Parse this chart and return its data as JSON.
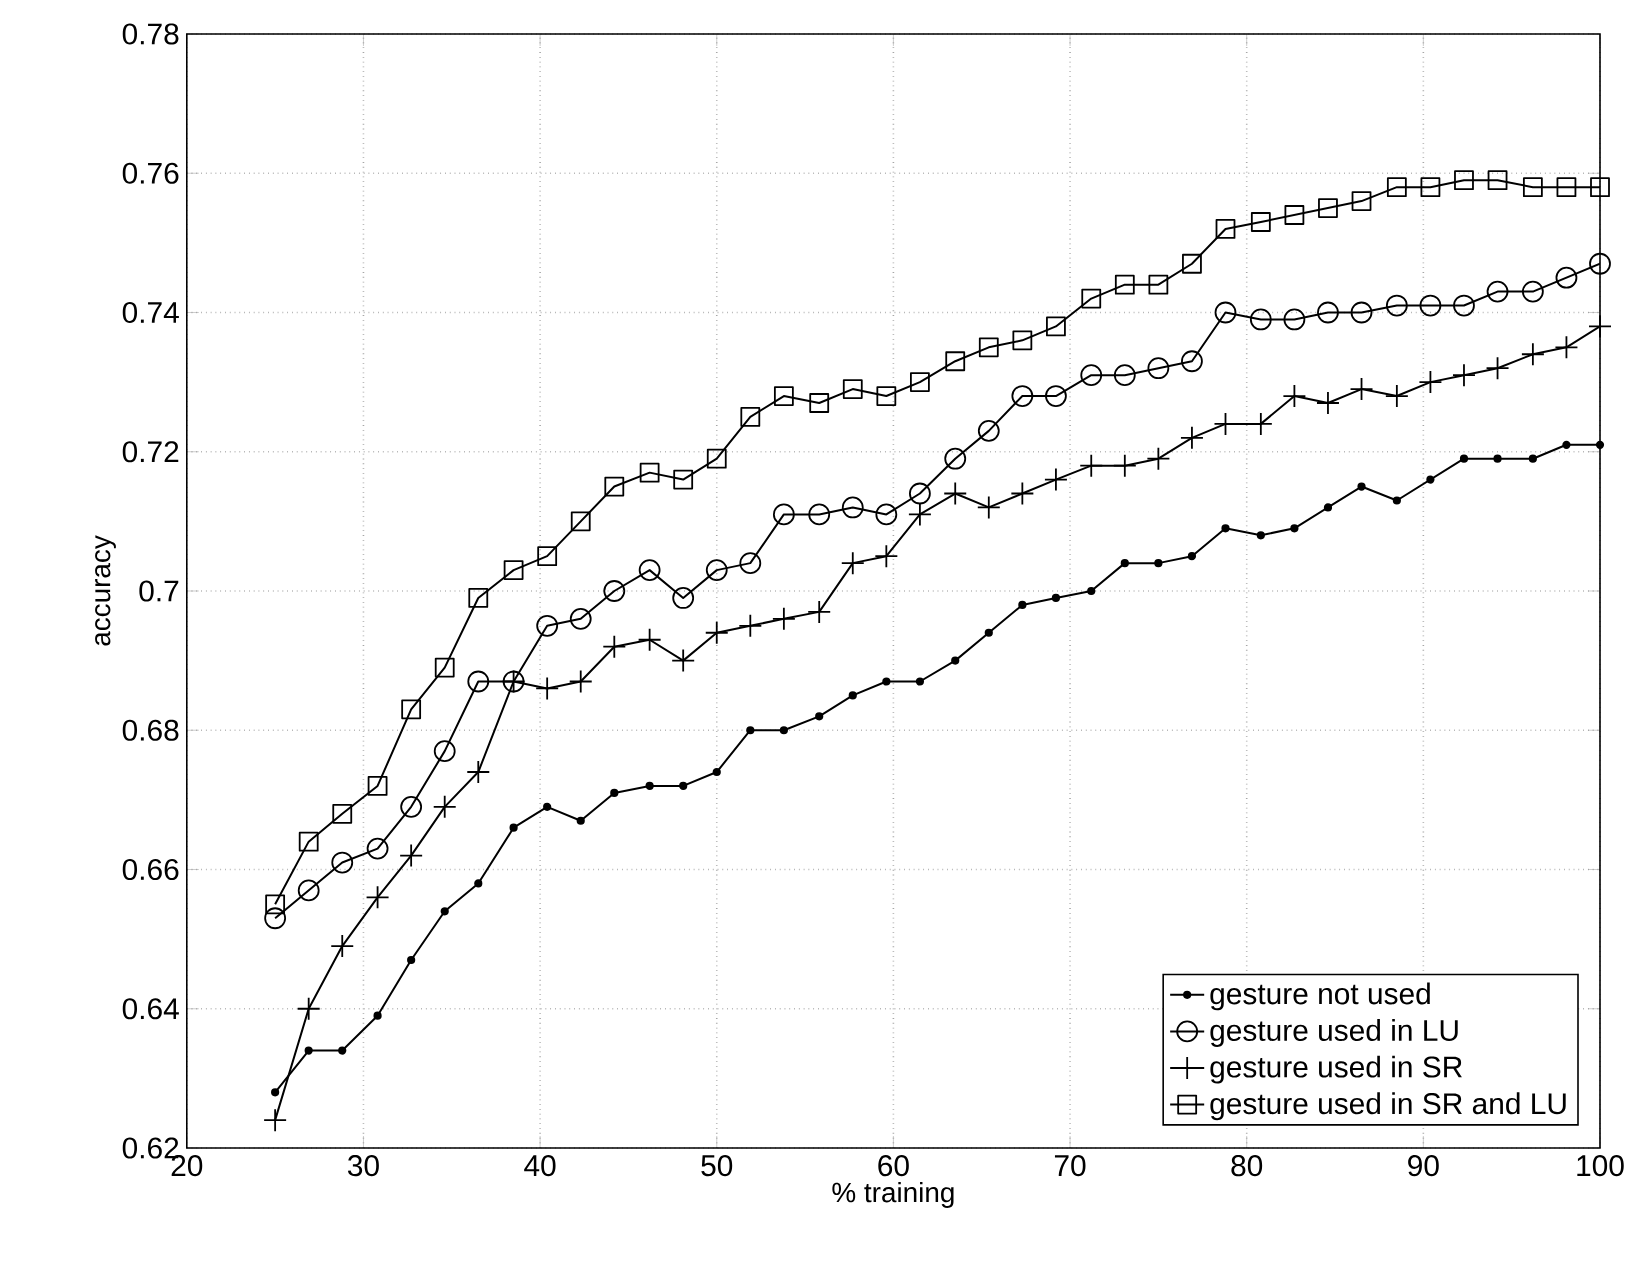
{
  "chart_data": {
    "type": "line",
    "xlabel": "% training",
    "ylabel": "accuracy",
    "x": [
      25,
      26.9,
      28.8,
      30.8,
      32.7,
      34.6,
      36.5,
      38.5,
      40.4,
      42.3,
      44.2,
      46.2,
      48.1,
      50,
      51.9,
      53.8,
      55.8,
      57.7,
      59.6,
      61.5,
      63.5,
      65.4,
      67.3,
      69.2,
      71.2,
      73.1,
      75,
      76.9,
      78.8,
      80.8,
      82.7,
      84.6,
      86.5,
      88.5,
      90.4,
      92.3,
      94.2,
      96.2,
      98.1,
      100
    ],
    "series": [
      {
        "name": "gesture not used",
        "color": "#000000",
        "marker": "point",
        "values": [
          0.628,
          0.634,
          0.634,
          0.639,
          0.647,
          0.654,
          0.658,
          0.666,
          0.669,
          0.667,
          0.671,
          0.672,
          0.672,
          0.674,
          0.68,
          0.68,
          0.682,
          0.685,
          0.687,
          0.687,
          0.69,
          0.694,
          0.698,
          0.699,
          0.7,
          0.704,
          0.704,
          0.705,
          0.709,
          0.708,
          0.709,
          0.712,
          0.715,
          0.713,
          0.716,
          0.719,
          0.719,
          0.719,
          0.721,
          0.721
        ]
      },
      {
        "name": "gesture used in LU",
        "color": "#000000",
        "marker": "circle",
        "values": [
          0.653,
          0.657,
          0.661,
          0.663,
          0.669,
          0.677,
          0.687,
          0.687,
          0.695,
          0.696,
          0.7,
          0.703,
          0.699,
          0.703,
          0.704,
          0.711,
          0.711,
          0.712,
          0.711,
          0.714,
          0.719,
          0.723,
          0.728,
          0.728,
          0.731,
          0.731,
          0.732,
          0.733,
          0.74,
          0.739,
          0.739,
          0.74,
          0.74,
          0.741,
          0.741,
          0.741,
          0.743,
          0.743,
          0.745,
          0.747
        ]
      },
      {
        "name": "gesture used in SR",
        "color": "#000000",
        "marker": "cross",
        "values": [
          0.624,
          0.64,
          0.649,
          0.656,
          0.662,
          0.669,
          0.674,
          0.687,
          0.686,
          0.687,
          0.692,
          0.693,
          0.69,
          0.694,
          0.695,
          0.696,
          0.697,
          0.704,
          0.705,
          0.711,
          0.714,
          0.712,
          0.714,
          0.716,
          0.718,
          0.718,
          0.719,
          0.722,
          0.724,
          0.724,
          0.728,
          0.727,
          0.729,
          0.728,
          0.73,
          0.731,
          0.732,
          0.734,
          0.735,
          0.738
        ]
      },
      {
        "name": "gesture used in SR and LU",
        "color": "#000000",
        "marker": "square",
        "values": [
          0.655,
          0.664,
          0.668,
          0.672,
          0.683,
          0.689,
          0.699,
          0.703,
          0.705,
          0.71,
          0.715,
          0.717,
          0.716,
          0.719,
          0.725,
          0.728,
          0.727,
          0.729,
          0.728,
          0.73,
          0.733,
          0.735,
          0.736,
          0.738,
          0.742,
          0.744,
          0.744,
          0.747,
          0.752,
          0.753,
          0.754,
          0.755,
          0.756,
          0.758,
          0.758,
          0.759,
          0.759,
          0.758,
          0.758,
          0.758
        ]
      }
    ],
    "xlim": [
      20,
      100
    ],
    "xticks": [
      20,
      30,
      40,
      50,
      60,
      70,
      80,
      90,
      100
    ],
    "ylim": [
      0.62,
      0.78
    ],
    "yticks": [
      0.62,
      0.64,
      0.66,
      0.68,
      0.7,
      0.72,
      0.74,
      0.76,
      0.78
    ],
    "grid": true,
    "legend": "bottom right",
    "line_style": "solid"
  }
}
